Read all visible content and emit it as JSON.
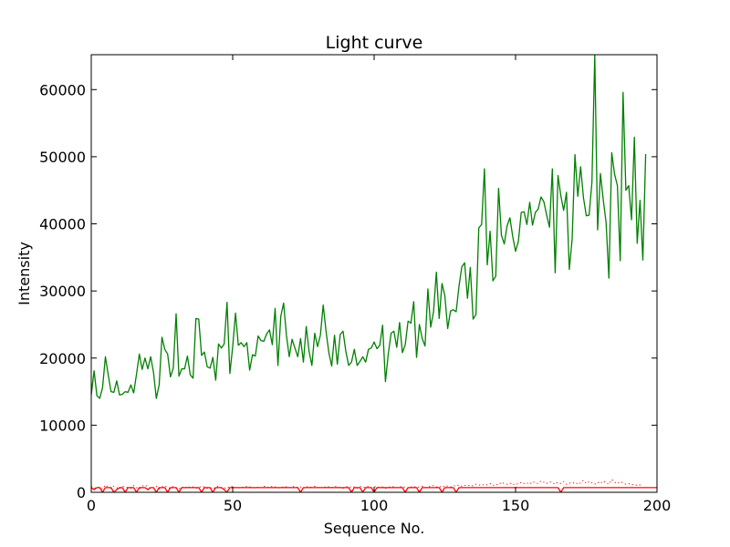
{
  "chart_data": {
    "type": "line",
    "title": "Light curve",
    "xlabel": "Sequence No.",
    "ylabel": "Intensity",
    "xlim": [
      0,
      200
    ],
    "ylim": [
      0,
      65200
    ],
    "x_ticks": [
      0,
      50,
      100,
      150,
      200
    ],
    "y_ticks": [
      0,
      10000,
      20000,
      30000,
      40000,
      50000,
      60000
    ],
    "grid": false,
    "legend": "none",
    "series": [
      {
        "color": "#008000",
        "style": "solid",
        "x_start": 0,
        "values": [
          14500,
          18100,
          14400,
          14000,
          15600,
          20200,
          17500,
          15000,
          14900,
          16600,
          14500,
          14600,
          15000,
          14900,
          16000,
          14800,
          17600,
          20600,
          18300,
          20000,
          18400,
          20200,
          17900,
          14000,
          16000,
          23100,
          21300,
          20600,
          17200,
          18500,
          26600,
          17300,
          18400,
          18400,
          20300,
          17500,
          17000,
          25900,
          25800,
          20400,
          20900,
          18700,
          18500,
          20100,
          16700,
          22100,
          21500,
          22100,
          28300,
          17700,
          21700,
          26700,
          21900,
          22300,
          21700,
          22300,
          18200,
          20500,
          20300,
          23300,
          22600,
          22500,
          23600,
          24200,
          22000,
          27400,
          18900,
          26200,
          28200,
          23400,
          20200,
          22800,
          21500,
          20200,
          22900,
          19400,
          24700,
          21000,
          18900,
          23700,
          21700,
          23400,
          27900,
          24000,
          20800,
          18800,
          23400,
          19100,
          23500,
          24000,
          21000,
          18900,
          19400,
          21300,
          18900,
          19500,
          20200,
          19400,
          21300,
          21500,
          22400,
          21400,
          21900,
          24900,
          16500,
          20600,
          23700,
          24000,
          21600,
          25300,
          20800,
          22000,
          25500,
          25200,
          28400,
          20100,
          25000,
          22900,
          21800,
          30300,
          24600,
          26900,
          32800,
          25900,
          31100,
          29300,
          24400,
          27000,
          27200,
          26900,
          30700,
          33600,
          34200,
          28900,
          33500,
          25800,
          26500,
          39400,
          39900,
          48200,
          33900,
          38900,
          31500,
          32200,
          45300,
          38300,
          37000,
          39700,
          40900,
          38100,
          35900,
          37400,
          41700,
          41800,
          39900,
          43200,
          39800,
          41700,
          42200,
          44000,
          43300,
          41300,
          39500,
          48200,
          32700,
          47200,
          44200,
          42000,
          44700,
          33200,
          37700,
          50300,
          44100,
          48500,
          43900,
          41200,
          41300,
          46200,
          65200,
          39100,
          47500,
          43600,
          40200,
          31900,
          50600,
          47400,
          45700,
          34500,
          59600,
          45000,
          45700,
          40600,
          52900,
          37100,
          43500,
          34600,
          50400
        ]
      },
      {
        "color": "#ff0000",
        "style": "solid",
        "x_start": 0,
        "values": [
          700,
          400,
          700,
          700,
          0,
          700,
          700,
          700,
          0,
          400,
          700,
          700,
          0,
          700,
          700,
          700,
          0,
          700,
          700,
          700,
          400,
          700,
          700,
          0,
          700,
          700,
          700,
          0,
          700,
          700,
          700,
          0,
          700,
          700,
          700,
          700,
          700,
          700,
          700,
          0,
          700,
          700,
          700,
          0,
          700,
          700,
          700,
          400,
          0,
          700,
          700,
          700,
          700,
          700,
          700,
          700,
          700,
          700,
          700,
          700,
          700,
          700,
          700,
          700,
          700,
          700,
          700,
          700,
          700,
          700,
          700,
          700,
          700,
          700,
          0,
          700,
          700,
          700,
          700,
          700,
          700,
          700,
          700,
          700,
          700,
          700,
          700,
          700,
          700,
          700,
          700,
          700,
          0,
          700,
          700,
          700,
          0,
          700,
          700,
          700,
          0,
          700,
          700,
          700,
          700,
          700,
          700,
          700,
          700,
          700,
          700,
          0,
          700,
          700,
          700,
          700,
          0,
          700,
          700,
          700,
          700,
          700,
          700,
          700,
          0,
          700,
          700,
          700,
          700,
          0,
          700,
          700,
          700,
          700,
          700,
          700,
          700,
          700,
          700,
          700,
          700,
          700,
          700,
          700,
          700,
          700,
          700,
          700,
          700,
          700,
          700,
          700,
          700,
          700,
          700,
          700,
          700,
          700,
          700,
          700,
          700,
          700,
          700,
          700,
          700,
          700,
          0,
          700,
          700,
          700,
          700,
          700,
          700,
          700,
          700,
          700,
          700,
          700,
          700,
          700,
          700,
          700,
          700,
          700,
          700,
          700,
          700,
          700,
          700,
          700,
          700,
          700,
          700,
          700,
          700,
          700,
          700,
          700,
          700,
          700,
          700,
          700
        ]
      },
      {
        "color": "#ff0000",
        "style": "dotted",
        "x_start": 0,
        "values": [
          900,
          600,
          800,
          700,
          500,
          1100,
          800,
          600,
          900,
          700,
          500,
          900,
          800,
          700,
          600,
          1000,
          700,
          500,
          900,
          1100,
          800,
          600,
          700,
          900,
          500,
          800,
          1000,
          700,
          600,
          900,
          700,
          500,
          800,
          600,
          900,
          700,
          800,
          600,
          700,
          900,
          800,
          600,
          700,
          500,
          800,
          900,
          700,
          600,
          800,
          700,
          900,
          700,
          600,
          800,
          700,
          900,
          800,
          700,
          600,
          800,
          700,
          900,
          800,
          700,
          900,
          800,
          700,
          600,
          900,
          800,
          700,
          800,
          900,
          700,
          800,
          600,
          900,
          700,
          800,
          900,
          700,
          800,
          600,
          900,
          800,
          700,
          900,
          800,
          700,
          600,
          800,
          900,
          700,
          800,
          600,
          900,
          700,
          800,
          900,
          700,
          800,
          900,
          700,
          800,
          600,
          700,
          900,
          800,
          700,
          800,
          900,
          700,
          600,
          800,
          900,
          700,
          800,
          900,
          700,
          800,
          900,
          1000,
          800,
          900,
          700,
          1000,
          900,
          800,
          1000,
          900,
          1100,
          900,
          1000,
          1100,
          900,
          1000,
          1200,
          1100,
          1000,
          1200,
          1100,
          1300,
          1000,
          1200,
          1100,
          1500,
          1300,
          1200,
          1400,
          1100,
          1300,
          1200,
          1500,
          1300,
          1400,
          1200,
          1600,
          1400,
          1300,
          1700,
          1500,
          1300,
          1600,
          1400,
          1200,
          1500,
          1300,
          1600,
          1200,
          1400,
          1300,
          1500,
          1200,
          1400,
          1800,
          1300,
          1600,
          1400,
          1200,
          1500,
          1300,
          1700,
          1400,
          1200,
          1900,
          1500,
          1300,
          1600,
          1400,
          1200,
          1300,
          1100,
          1200,
          1000,
          1100,
          1200
        ]
      }
    ]
  }
}
